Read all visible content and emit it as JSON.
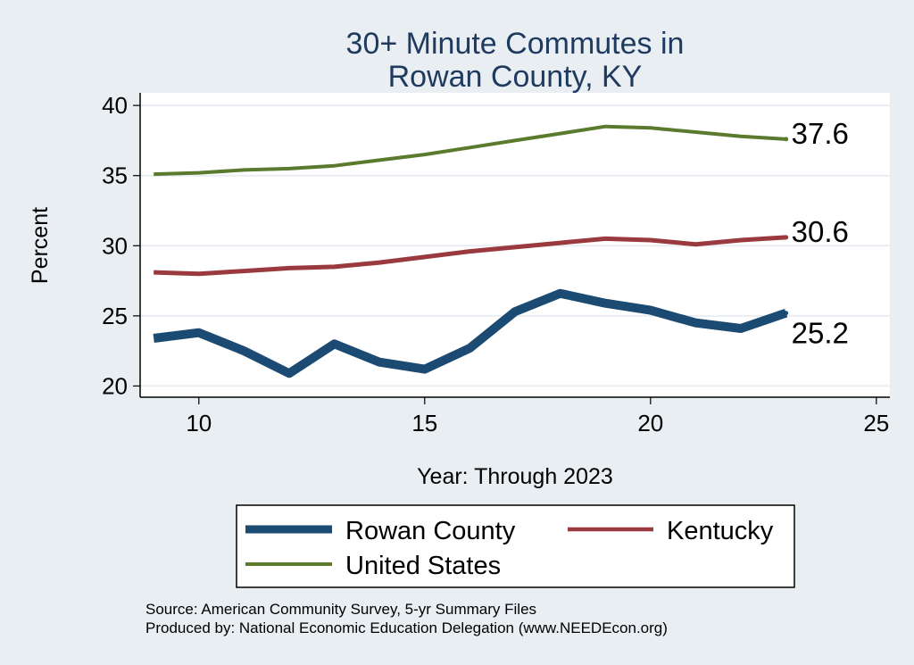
{
  "chart_data": {
    "type": "line",
    "title": [
      "30+ Minute Commutes in",
      "Rowan County, KY"
    ],
    "xlabel": "Year: Through 2023",
    "ylabel": "Percent",
    "xlim": [
      8.7,
      25.3
    ],
    "ylim": [
      19.2,
      40.9
    ],
    "xticks": [
      10,
      15,
      20,
      25
    ],
    "yticks": [
      20,
      25,
      30,
      35,
      40
    ],
    "grid": true,
    "legend_position": "bottom",
    "x": [
      9,
      10,
      11,
      12,
      13,
      14,
      15,
      16,
      17,
      18,
      19,
      20,
      21,
      22,
      23
    ],
    "series": [
      {
        "name": "Rowan County",
        "color": "#1b4a72",
        "end_label": "25.2",
        "values": [
          23.4,
          23.8,
          22.5,
          20.9,
          23.0,
          21.7,
          21.2,
          22.7,
          25.3,
          26.6,
          25.9,
          25.4,
          24.5,
          24.1,
          25.2
        ]
      },
      {
        "name": "Kentucky",
        "color": "#9b3a3e",
        "end_label": "30.6",
        "values": [
          28.1,
          28.0,
          28.2,
          28.4,
          28.5,
          28.8,
          29.2,
          29.6,
          29.9,
          30.2,
          30.5,
          30.4,
          30.1,
          30.4,
          30.6
        ]
      },
      {
        "name": "United States",
        "color": "#5a7a2e",
        "end_label": "37.6",
        "values": [
          35.1,
          35.2,
          35.4,
          35.5,
          35.7,
          36.1,
          36.5,
          37.0,
          37.5,
          38.0,
          38.5,
          38.4,
          38.1,
          37.8,
          37.6
        ]
      }
    ]
  },
  "notes": {
    "source": "Source: American Community Survey, 5-yr Summary Files",
    "produced_by": "Produced by: National Economic Education Delegation (www.NEEDEcon.org)"
  }
}
